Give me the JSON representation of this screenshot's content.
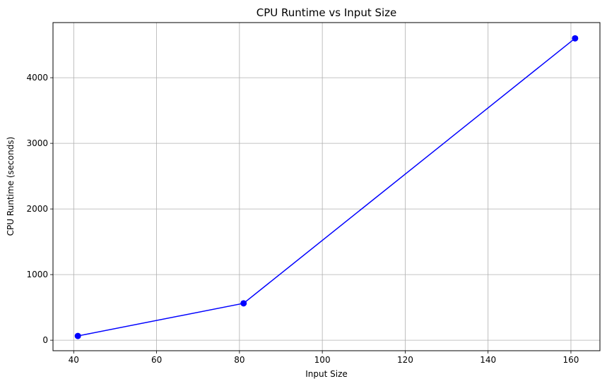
{
  "chart_data": {
    "type": "line",
    "title": "CPU Runtime vs Input Size",
    "xlabel": "Input Size",
    "ylabel": "CPU Runtime (seconds)",
    "x_ticks": [
      40,
      60,
      80,
      100,
      120,
      140,
      160
    ],
    "y_ticks": [
      0,
      1000,
      2000,
      3000,
      4000
    ],
    "xlim": [
      35,
      167
    ],
    "ylim": [
      -160,
      4840
    ],
    "grid": true,
    "series": [
      {
        "color": "#0000ff",
        "marker": "circle",
        "points": [
          {
            "x": 41,
            "y": 65
          },
          {
            "x": 81,
            "y": 562
          },
          {
            "x": 161,
            "y": 4600
          }
        ]
      }
    ]
  }
}
